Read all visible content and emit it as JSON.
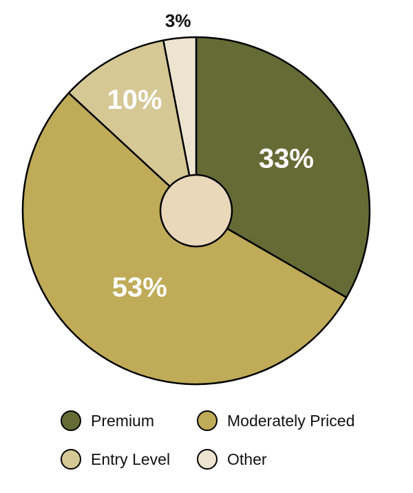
{
  "chart_data": {
    "type": "pie",
    "categories": [
      "Premium",
      "Moderately Priced",
      "Entry Level",
      "Other"
    ],
    "values": [
      33,
      53,
      10,
      3
    ],
    "data_labels": [
      "33%",
      "53%",
      "10%",
      "3%"
    ],
    "colors": [
      "#656b35",
      "#bfab58",
      "#d5c895",
      "#ede4cf"
    ],
    "center_color": "#ead8bb",
    "legend": [
      "Premium",
      "Moderately Priced",
      "Entry Level",
      "Other"
    ]
  }
}
